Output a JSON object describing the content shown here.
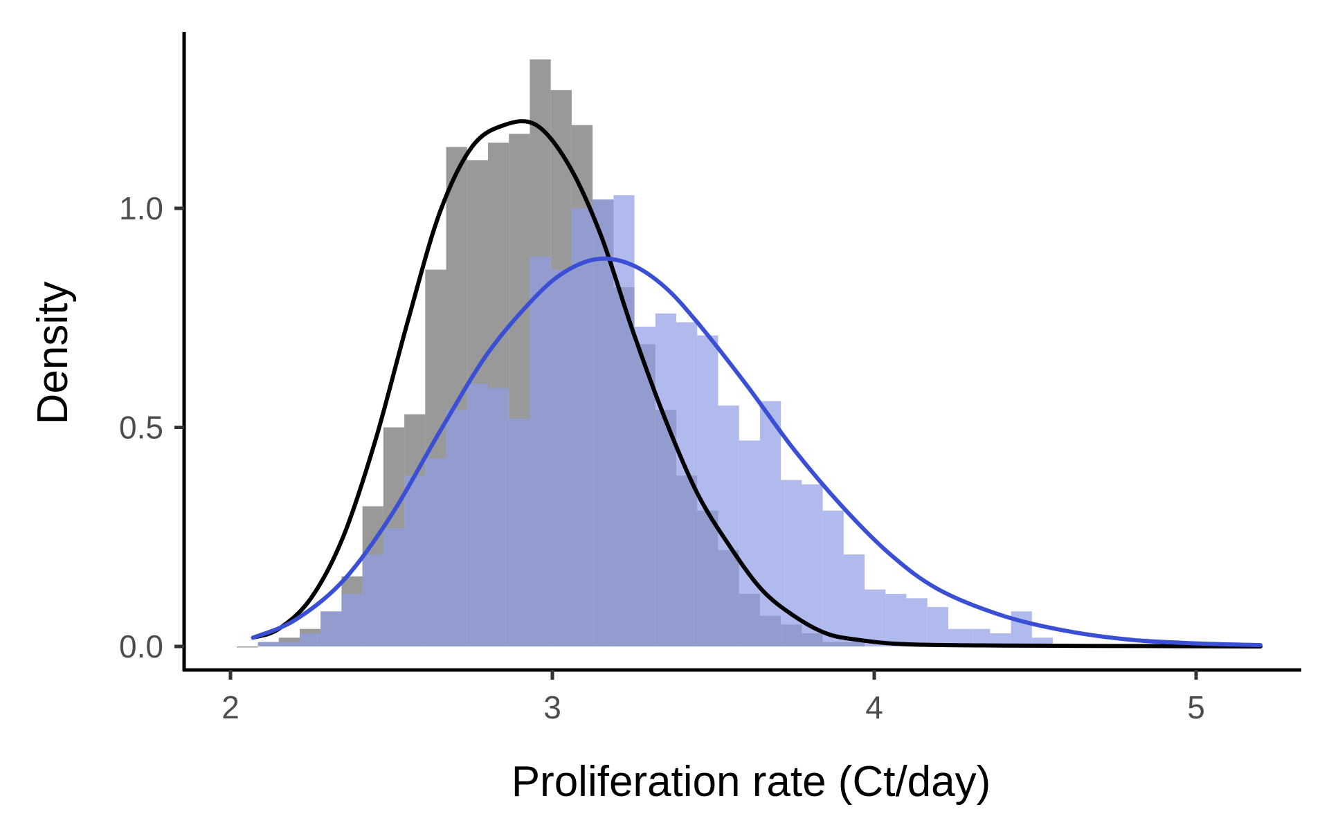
{
  "chart_data": {
    "type": "histogram",
    "title": "",
    "xlabel": "Proliferation rate (Ct/day)",
    "ylabel": "Density",
    "xlim": [
      1.85,
      5.4
    ],
    "ylim": [
      -0.07,
      1.4
    ],
    "x_ticks": [
      2,
      3,
      4,
      5
    ],
    "x_tick_labels": [
      "2",
      "3",
      "4",
      "5"
    ],
    "y_ticks": [
      0.0,
      0.5,
      1.0
    ],
    "y_tick_labels": [
      "0.0",
      "0.5",
      "1.0"
    ],
    "grid": false,
    "legend": "none",
    "bin_width": 0.065,
    "series": [
      {
        "kind": "histogram",
        "color": "#808080",
        "opacity": 0.8,
        "bins": [
          [
            2.02,
            0.0
          ],
          [
            2.085,
            0.01
          ],
          [
            2.15,
            0.02
          ],
          [
            2.215,
            0.04
          ],
          [
            2.28,
            0.08
          ],
          [
            2.345,
            0.16
          ],
          [
            2.41,
            0.32
          ],
          [
            2.475,
            0.5
          ],
          [
            2.54,
            0.53
          ],
          [
            2.605,
            0.86
          ],
          [
            2.67,
            1.14
          ],
          [
            2.735,
            1.11
          ],
          [
            2.8,
            1.15
          ],
          [
            2.865,
            1.17
          ],
          [
            2.93,
            1.34
          ],
          [
            2.995,
            1.27
          ],
          [
            3.06,
            1.19
          ],
          [
            3.125,
            1.02
          ],
          [
            3.19,
            0.82
          ],
          [
            3.255,
            0.69
          ],
          [
            3.32,
            0.54
          ],
          [
            3.385,
            0.39
          ],
          [
            3.45,
            0.31
          ],
          [
            3.515,
            0.22
          ],
          [
            3.58,
            0.12
          ],
          [
            3.645,
            0.07
          ],
          [
            3.71,
            0.05
          ],
          [
            3.775,
            0.03
          ],
          [
            3.84,
            0.01
          ],
          [
            3.905,
            0.01
          ]
        ]
      },
      {
        "kind": "histogram",
        "color": "#8e9ce6",
        "opacity": 0.7,
        "bins": [
          [
            2.085,
            0.01
          ],
          [
            2.15,
            0.01
          ],
          [
            2.215,
            0.03
          ],
          [
            2.28,
            0.08
          ],
          [
            2.345,
            0.12
          ],
          [
            2.41,
            0.21
          ],
          [
            2.475,
            0.27
          ],
          [
            2.54,
            0.39
          ],
          [
            2.605,
            0.43
          ],
          [
            2.67,
            0.54
          ],
          [
            2.735,
            0.6
          ],
          [
            2.8,
            0.59
          ],
          [
            2.865,
            0.52
          ],
          [
            2.93,
            0.89
          ],
          [
            2.995,
            0.86
          ],
          [
            3.06,
            1.0
          ],
          [
            3.125,
            1.02
          ],
          [
            3.19,
            1.03
          ],
          [
            3.255,
            0.73
          ],
          [
            3.32,
            0.76
          ],
          [
            3.385,
            0.74
          ],
          [
            3.45,
            0.71
          ],
          [
            3.515,
            0.55
          ],
          [
            3.58,
            0.47
          ],
          [
            3.645,
            0.56
          ],
          [
            3.71,
            0.38
          ],
          [
            3.775,
            0.37
          ],
          [
            3.84,
            0.31
          ],
          [
            3.905,
            0.21
          ],
          [
            3.97,
            0.13
          ],
          [
            4.035,
            0.12
          ],
          [
            4.1,
            0.11
          ],
          [
            4.165,
            0.09
          ],
          [
            4.23,
            0.04
          ],
          [
            4.295,
            0.04
          ],
          [
            4.36,
            0.03
          ],
          [
            4.425,
            0.08
          ],
          [
            4.49,
            0.02
          ]
        ]
      },
      {
        "kind": "line",
        "color": "#000000",
        "points": [
          [
            2.07,
            0.02
          ],
          [
            2.15,
            0.04
          ],
          [
            2.25,
            0.11
          ],
          [
            2.35,
            0.25
          ],
          [
            2.45,
            0.47
          ],
          [
            2.55,
            0.74
          ],
          [
            2.65,
            0.99
          ],
          [
            2.75,
            1.14
          ],
          [
            2.85,
            1.19
          ],
          [
            2.95,
            1.19
          ],
          [
            3.05,
            1.1
          ],
          [
            3.15,
            0.94
          ],
          [
            3.25,
            0.72
          ],
          [
            3.35,
            0.52
          ],
          [
            3.45,
            0.35
          ],
          [
            3.55,
            0.23
          ],
          [
            3.65,
            0.13
          ],
          [
            3.75,
            0.07
          ],
          [
            3.85,
            0.03
          ],
          [
            3.95,
            0.015
          ],
          [
            4.1,
            0.005
          ],
          [
            4.4,
            0.002
          ],
          [
            4.8,
            0.001
          ],
          [
            5.2,
            0.0
          ]
        ]
      },
      {
        "kind": "line",
        "color": "#3b4fd4",
        "points": [
          [
            2.07,
            0.02
          ],
          [
            2.2,
            0.06
          ],
          [
            2.35,
            0.15
          ],
          [
            2.5,
            0.3
          ],
          [
            2.65,
            0.49
          ],
          [
            2.8,
            0.67
          ],
          [
            2.95,
            0.8
          ],
          [
            3.05,
            0.86
          ],
          [
            3.15,
            0.885
          ],
          [
            3.25,
            0.87
          ],
          [
            3.35,
            0.82
          ],
          [
            3.45,
            0.74
          ],
          [
            3.6,
            0.6
          ],
          [
            3.75,
            0.45
          ],
          [
            3.9,
            0.32
          ],
          [
            4.05,
            0.21
          ],
          [
            4.2,
            0.13
          ],
          [
            4.4,
            0.07
          ],
          [
            4.6,
            0.035
          ],
          [
            4.8,
            0.015
          ],
          [
            5.0,
            0.007
          ],
          [
            5.2,
            0.003
          ]
        ]
      }
    ]
  }
}
